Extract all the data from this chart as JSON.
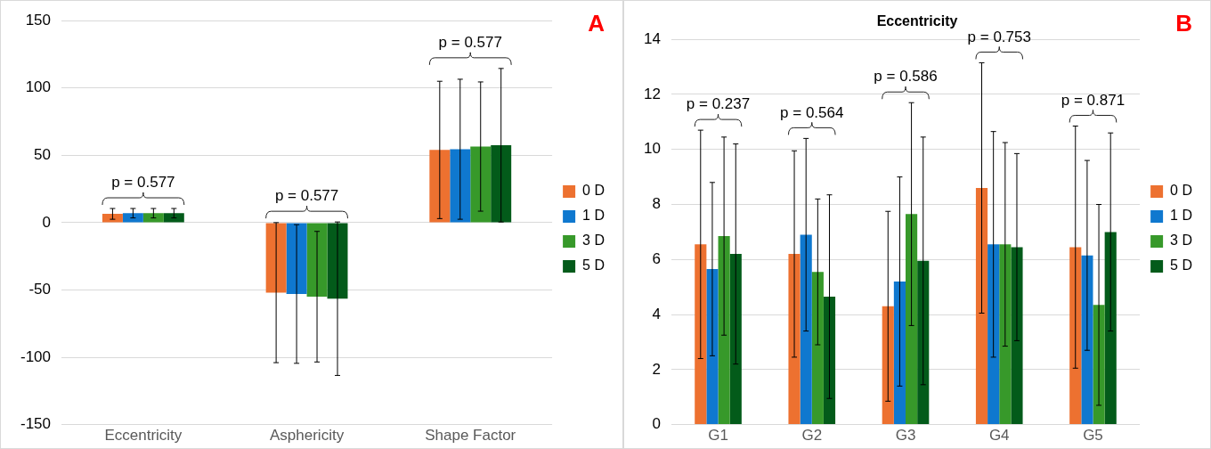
{
  "chart_data": [
    {
      "type": "bar",
      "categories": [
        "Eccentricity",
        "Asphericity",
        "Shape Factor"
      ],
      "ylim": [
        -150,
        150
      ],
      "yticks": [
        -150,
        -100,
        -50,
        0,
        50,
        100,
        150
      ],
      "grid": "y",
      "legend": "right",
      "series": [
        {
          "name": "0 D",
          "color": "#ed7130",
          "values": [
            6.5,
            -52,
            54
          ],
          "errors": [
            4,
            52,
            51
          ]
        },
        {
          "name": "1 D",
          "color": "#0f78cf",
          "values": [
            7,
            -53,
            54.5
          ],
          "errors": [
            3.5,
            51.5,
            52
          ]
        },
        {
          "name": "3 D",
          "color": "#37992a",
          "values": [
            7,
            -55,
            56.5
          ],
          "errors": [
            3.5,
            48.5,
            48
          ]
        },
        {
          "name": "5 D",
          "color": "#035b1a",
          "values": [
            7,
            -56.5,
            57.5
          ],
          "errors": [
            3.5,
            57,
            57
          ]
        }
      ],
      "annotations": [
        "p = 0.577",
        "p = 0.577",
        "p = 0.577",
        "A"
      ]
    },
    {
      "type": "bar",
      "title": "Eccentricity",
      "categories": [
        "G1",
        "G2",
        "G3",
        "G4",
        "G5"
      ],
      "ylim": [
        0,
        14
      ],
      "yticks": [
        0,
        2,
        4,
        6,
        8,
        10,
        12,
        14
      ],
      "grid": "y",
      "legend": "right",
      "series": [
        {
          "name": "0 D",
          "color": "#ed7130",
          "values": [
            6.55,
            6.2,
            4.3,
            8.6,
            6.45
          ],
          "errors": [
            4.15,
            3.75,
            3.45,
            4.55,
            4.4
          ]
        },
        {
          "name": "1 D",
          "color": "#0f78cf",
          "values": [
            5.65,
            6.9,
            5.2,
            6.55,
            6.15
          ],
          "errors": [
            3.15,
            3.5,
            3.8,
            4.1,
            3.45
          ]
        },
        {
          "name": "3 D",
          "color": "#37992a",
          "values": [
            6.85,
            5.55,
            7.65,
            6.55,
            4.35
          ],
          "errors": [
            3.6,
            2.65,
            4.05,
            3.7,
            3.65
          ]
        },
        {
          "name": "5 D",
          "color": "#035b1a",
          "values": [
            6.2,
            4.65,
            5.95,
            6.45,
            7.0
          ],
          "errors": [
            4,
            3.7,
            4.5,
            3.4,
            3.6
          ]
        }
      ],
      "annotations": [
        "p = 0.237",
        "p = 0.564",
        "p = 0.586",
        "p = 0.753",
        "p = 0.871",
        "B"
      ]
    }
  ]
}
